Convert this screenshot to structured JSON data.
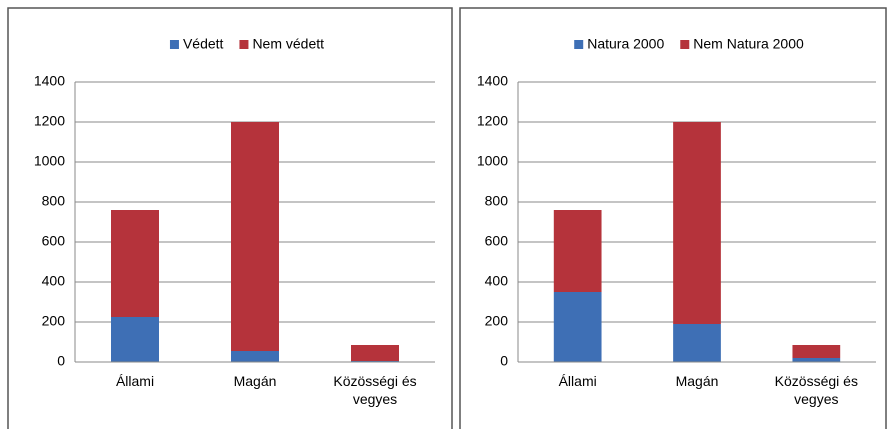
{
  "chart_data": [
    {
      "type": "bar",
      "stacked": true,
      "categories": [
        "Állami",
        "Magán",
        "Közösségi és vegyes"
      ],
      "series": [
        {
          "name": "Védett",
          "color": "#3e6fb5",
          "values": [
            225,
            55,
            5
          ]
        },
        {
          "name": "Nem védett",
          "color": "#b5333b",
          "values": [
            535,
            1145,
            80
          ]
        }
      ],
      "ylim": [
        0,
        1400
      ],
      "yticks": [
        0,
        200,
        400,
        600,
        800,
        1000,
        1200,
        1400
      ],
      "grid": true,
      "legend": "top"
    },
    {
      "type": "bar",
      "stacked": true,
      "categories": [
        "Állami",
        "Magán",
        "Közösségi és vegyes"
      ],
      "series": [
        {
          "name": "Natura 2000",
          "color": "#3e6fb5",
          "values": [
            350,
            190,
            20
          ]
        },
        {
          "name": "Nem Natura 2000",
          "color": "#b5333b",
          "values": [
            410,
            1010,
            65
          ]
        }
      ],
      "ylim": [
        0,
        1400
      ],
      "yticks": [
        0,
        200,
        400,
        600,
        800,
        1000,
        1200,
        1400
      ],
      "grid": true,
      "legend": "top"
    }
  ]
}
